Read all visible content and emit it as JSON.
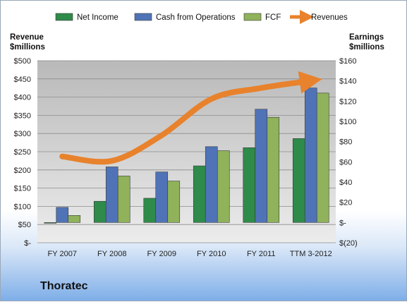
{
  "chart_data": {
    "type": "bar",
    "categories": [
      "FY 2007",
      "FY 2008",
      "FY 2009",
      "FY 2010",
      "FY 2011",
      "TTM 3-2012"
    ],
    "series": [
      {
        "name": "Net Income",
        "axis": "right",
        "color": "#2e8b4a",
        "values": [
          0,
          21,
          24,
          56,
          74,
          83
        ]
      },
      {
        "name": "Cash from Operations",
        "axis": "right",
        "color": "#4f73b6",
        "values": [
          15,
          55,
          50,
          75,
          112,
          133
        ]
      },
      {
        "name": "FCF",
        "axis": "right",
        "color": "#8fb25a",
        "values": [
          7,
          46,
          41,
          71,
          104,
          128
        ]
      },
      {
        "name": "Revenues",
        "axis": "left",
        "type": "line",
        "color": "#e8822c",
        "values": [
          237,
          225,
          295,
          395,
          425,
          445
        ]
      }
    ],
    "left_axis": {
      "title_line1": "Revenue",
      "title_line2": "$millions",
      "ylim": [
        0,
        500
      ],
      "ticks": [
        "$500",
        "$450",
        "$400",
        "$350",
        "$300",
        "$250",
        "$200",
        "$150",
        "$100",
        "$50",
        "$-"
      ]
    },
    "right_axis": {
      "title_line1": "Earnings",
      "title_line2": "$millions",
      "ylim": [
        -20,
        160
      ],
      "ticks": [
        "$160",
        "$140",
        "$120",
        "$100",
        "$80",
        "$60",
        "$40",
        "$20",
        "$-",
        "$(20)"
      ]
    },
    "legend_position": "top",
    "grid": true,
    "company": "Thoratec"
  }
}
